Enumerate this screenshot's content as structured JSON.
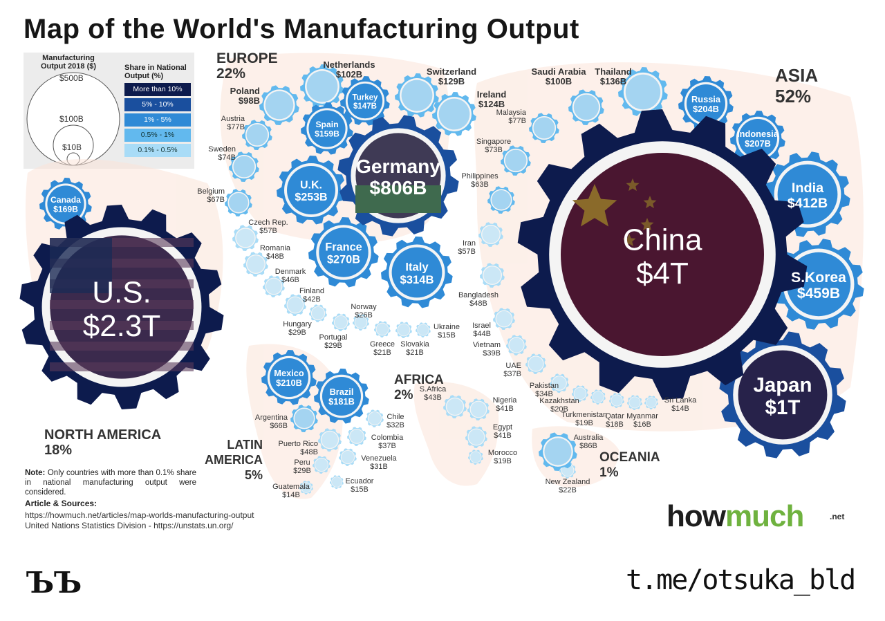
{
  "title": "Map of the World's Manufacturing Output",
  "legend": {
    "size_title_1": "Manufacturing",
    "size_title_2": "Output 2018 ($)",
    "share_title_1": "Share in National",
    "share_title_2": "Output (%)",
    "circle_labels": [
      "$500B",
      "$100B",
      "$10B"
    ],
    "share_classes": [
      {
        "label": "More than 10%",
        "color": "#0d1b4d"
      },
      {
        "label": "5% - 10%",
        "color": "#1a4f9e"
      },
      {
        "label": "1% - 5%",
        "color": "#2f8ad6"
      },
      {
        "label": "0.5% - 1%",
        "color": "#62b9ee"
      },
      {
        "label": "0.1% - 0.5%",
        "color": "#a9dcf7"
      }
    ]
  },
  "regions": [
    {
      "name": "EUROPE",
      "share": "22%"
    },
    {
      "name": "ASIA",
      "share": "52%"
    },
    {
      "name": "NORTH AMERICA",
      "share": "18%"
    },
    {
      "name": "LATIN",
      "name2": "AMERICA",
      "share": "5%"
    },
    {
      "name": "AFRICA",
      "share": "2%"
    },
    {
      "name": "OCEANIA",
      "share": "1%"
    }
  ],
  "note": {
    "prefix": "Note:",
    "text": "Only countries with more than 0.1% share in national manufacturing output were considered.",
    "sources_head": "Article & Sources:",
    "sources": [
      "https://howmuch.net/articles/map-worlds-manufacturing-output",
      "United Nations Statistics Division - https://unstats.un.org/"
    ]
  },
  "brand": {
    "how": "how",
    "much": "much",
    "net": ".net"
  },
  "watermark": {
    "mark": "ЪЪ",
    "channel": "t.me/otsuka_bld"
  },
  "chart_data": {
    "type": "bubble",
    "title": "Map of the World's Manufacturing Output",
    "value_unit": "Manufacturing Output 2018 ($)",
    "points": [
      {
        "country": "China",
        "label": "$4T",
        "value_usd_b": 4000,
        "region": "Asia",
        "share_class": "More than 10%"
      },
      {
        "country": "U.S.",
        "label": "$2.3T",
        "value_usd_b": 2300,
        "region": "North America",
        "share_class": "More than 10%"
      },
      {
        "country": "Japan",
        "label": "$1T",
        "value_usd_b": 1000,
        "region": "Asia",
        "share_class": "5% - 10%"
      },
      {
        "country": "Germany",
        "label": "$806B",
        "value_usd_b": 806,
        "region": "Europe",
        "share_class": "5% - 10%"
      },
      {
        "country": "S.Korea",
        "label": "$459B",
        "value_usd_b": 459,
        "region": "Asia",
        "share_class": "1% - 5%"
      },
      {
        "country": "India",
        "label": "$412B",
        "value_usd_b": 412,
        "region": "Asia",
        "share_class": "1% - 5%"
      },
      {
        "country": "Italy",
        "label": "$314B",
        "value_usd_b": 314,
        "region": "Europe",
        "share_class": "1% - 5%"
      },
      {
        "country": "France",
        "label": "$270B",
        "value_usd_b": 270,
        "region": "Europe",
        "share_class": "1% - 5%"
      },
      {
        "country": "U.K.",
        "label": "$253B",
        "value_usd_b": 253,
        "region": "Europe",
        "share_class": "1% - 5%"
      },
      {
        "country": "Mexico",
        "label": "$210B",
        "value_usd_b": 210,
        "region": "Latin America",
        "share_class": "1% - 5%"
      },
      {
        "country": "Indonesia",
        "label": "$207B",
        "value_usd_b": 207,
        "region": "Asia",
        "share_class": "1% - 5%"
      },
      {
        "country": "Russia",
        "label": "$204B",
        "value_usd_b": 204,
        "region": "Asia",
        "share_class": "1% - 5%"
      },
      {
        "country": "Brazil",
        "label": "$181B",
        "value_usd_b": 181,
        "region": "Latin America",
        "share_class": "1% - 5%"
      },
      {
        "country": "Canada",
        "label": "$169B",
        "value_usd_b": 169,
        "region": "North America",
        "share_class": "1% - 5%"
      },
      {
        "country": "Spain",
        "label": "$159B",
        "value_usd_b": 159,
        "region": "Europe",
        "share_class": "1% - 5%"
      },
      {
        "country": "Turkey",
        "label": "$147B",
        "value_usd_b": 147,
        "region": "Europe",
        "share_class": "1% - 5%"
      },
      {
        "country": "Thailand",
        "label": "$136B",
        "value_usd_b": 136,
        "region": "Asia",
        "share_class": "0.5% - 1%"
      },
      {
        "country": "Switzerland",
        "label": "$129B",
        "value_usd_b": 129,
        "region": "Europe",
        "share_class": "0.5% - 1%"
      },
      {
        "country": "Ireland",
        "label": "$124B",
        "value_usd_b": 124,
        "region": "Europe",
        "share_class": "0.5% - 1%"
      },
      {
        "country": "Netherlands",
        "label": "$102B",
        "value_usd_b": 102,
        "region": "Europe",
        "share_class": "0.5% - 1%"
      },
      {
        "country": "Saudi Arabia",
        "label": "$100B",
        "value_usd_b": 100,
        "region": "Asia",
        "share_class": "0.5% - 1%"
      },
      {
        "country": "Poland",
        "label": "$98B",
        "value_usd_b": 98,
        "region": "Europe",
        "share_class": "0.5% - 1%"
      },
      {
        "country": "Australia",
        "label": "$86B",
        "value_usd_b": 86,
        "region": "Oceania",
        "share_class": "0.5% - 1%"
      },
      {
        "country": "Austria",
        "label": "$77B",
        "value_usd_b": 77,
        "region": "Europe",
        "share_class": "0.5% - 1%"
      },
      {
        "country": "Malaysia",
        "label": "$77B",
        "value_usd_b": 77,
        "region": "Asia",
        "share_class": "0.5% - 1%"
      },
      {
        "country": "Sweden",
        "label": "$74B",
        "value_usd_b": 74,
        "region": "Europe",
        "share_class": "0.5% - 1%"
      },
      {
        "country": "Singapore",
        "label": "$73B",
        "value_usd_b": 73,
        "region": "Asia",
        "share_class": "0.5% - 1%"
      },
      {
        "country": "Belgium",
        "label": "$67B",
        "value_usd_b": 67,
        "region": "Europe",
        "share_class": "0.5% - 1%"
      },
      {
        "country": "Argentina",
        "label": "$66B",
        "value_usd_b": 66,
        "region": "Latin America",
        "share_class": "0.5% - 1%"
      },
      {
        "country": "Philippines",
        "label": "$63B",
        "value_usd_b": 63,
        "region": "Asia",
        "share_class": "0.5% - 1%"
      },
      {
        "country": "Czech Rep.",
        "label": "$57B",
        "value_usd_b": 57,
        "region": "Europe",
        "share_class": "0.1% - 0.5%"
      },
      {
        "country": "Iran",
        "label": "$57B",
        "value_usd_b": 57,
        "region": "Asia",
        "share_class": "0.1% - 0.5%"
      },
      {
        "country": "Romania",
        "label": "$48B",
        "value_usd_b": 48,
        "region": "Europe",
        "share_class": "0.1% - 0.5%"
      },
      {
        "country": "Bangladesh",
        "label": "$48B",
        "value_usd_b": 48,
        "region": "Asia",
        "share_class": "0.1% - 0.5%"
      },
      {
        "country": "Puerto Rico",
        "label": "$48B",
        "value_usd_b": 48,
        "region": "Latin America",
        "share_class": "0.1% - 0.5%"
      },
      {
        "country": "Denmark",
        "label": "$46B",
        "value_usd_b": 46,
        "region": "Europe",
        "share_class": "0.1% - 0.5%"
      },
      {
        "country": "Israel",
        "label": "$44B",
        "value_usd_b": 44,
        "region": "Asia",
        "share_class": "0.1% - 0.5%"
      },
      {
        "country": "S.Africa",
        "label": "$43B",
        "value_usd_b": 43,
        "region": "Africa",
        "share_class": "0.1% - 0.5%"
      },
      {
        "country": "Finland",
        "label": "$42B",
        "value_usd_b": 42,
        "region": "Europe",
        "share_class": "0.1% - 0.5%"
      },
      {
        "country": "Nigeria",
        "label": "$41B",
        "value_usd_b": 41,
        "region": "Africa",
        "share_class": "0.1% - 0.5%"
      },
      {
        "country": "Egypt",
        "label": "$41B",
        "value_usd_b": 41,
        "region": "Africa",
        "share_class": "0.1% - 0.5%"
      },
      {
        "country": "Vietnam",
        "label": "$39B",
        "value_usd_b": 39,
        "region": "Asia",
        "share_class": "0.1% - 0.5%"
      },
      {
        "country": "UAE",
        "label": "$37B",
        "value_usd_b": 37,
        "region": "Asia",
        "share_class": "0.1% - 0.5%"
      },
      {
        "country": "Colombia",
        "label": "$37B",
        "value_usd_b": 37,
        "region": "Latin America",
        "share_class": "0.1% - 0.5%"
      },
      {
        "country": "Pakistan",
        "label": "$34B",
        "value_usd_b": 34,
        "region": "Asia",
        "share_class": "0.1% - 0.5%"
      },
      {
        "country": "Chile",
        "label": "$32B",
        "value_usd_b": 32,
        "region": "Latin America",
        "share_class": "0.1% - 0.5%"
      },
      {
        "country": "Venezuela",
        "label": "$31B",
        "value_usd_b": 31,
        "region": "Latin America",
        "share_class": "0.1% - 0.5%"
      },
      {
        "country": "Hungary",
        "label": "$29B",
        "value_usd_b": 29,
        "region": "Europe",
        "share_class": "0.1% - 0.5%"
      },
      {
        "country": "Portugal",
        "label": "$29B",
        "value_usd_b": 29,
        "region": "Europe",
        "share_class": "0.1% - 0.5%"
      },
      {
        "country": "Peru",
        "label": "$29B",
        "value_usd_b": 29,
        "region": "Latin America",
        "share_class": "0.1% - 0.5%"
      },
      {
        "country": "Norway",
        "label": "$26B",
        "value_usd_b": 26,
        "region": "Europe",
        "share_class": "0.1% - 0.5%"
      },
      {
        "country": "New Zealand",
        "label": "$22B",
        "value_usd_b": 22,
        "region": "Oceania",
        "share_class": "0.1% - 0.5%"
      },
      {
        "country": "Greece",
        "label": "$21B",
        "value_usd_b": 21,
        "region": "Europe",
        "share_class": "0.1% - 0.5%"
      },
      {
        "country": "Slovakia",
        "label": "$21B",
        "value_usd_b": 21,
        "region": "Europe",
        "share_class": "0.1% - 0.5%"
      },
      {
        "country": "Kazakhstan",
        "label": "$20B",
        "value_usd_b": 20,
        "region": "Asia",
        "share_class": "0.1% - 0.5%"
      },
      {
        "country": "Turkmenistan",
        "label": "$19B",
        "value_usd_b": 19,
        "region": "Asia",
        "share_class": "0.1% - 0.5%"
      },
      {
        "country": "Morocco",
        "label": "$19B",
        "value_usd_b": 19,
        "region": "Africa",
        "share_class": "0.1% - 0.5%"
      },
      {
        "country": "Qatar",
        "label": "$18B",
        "value_usd_b": 18,
        "region": "Asia",
        "share_class": "0.1% - 0.5%"
      },
      {
        "country": "Myanmar",
        "label": "$16B",
        "value_usd_b": 16,
        "region": "Asia",
        "share_class": "0.1% - 0.5%"
      },
      {
        "country": "Ukraine",
        "label": "$15B",
        "value_usd_b": 15,
        "region": "Europe",
        "share_class": "0.1% - 0.5%"
      },
      {
        "country": "Ecuador",
        "label": "$15B",
        "value_usd_b": 15,
        "region": "Latin America",
        "share_class": "0.1% - 0.5%"
      },
      {
        "country": "Sri Lanka",
        "label": "$14B",
        "value_usd_b": 14,
        "region": "Asia",
        "share_class": "0.1% - 0.5%"
      },
      {
        "country": "Guatemala",
        "label": "$14B",
        "value_usd_b": 14,
        "region": "Latin America",
        "share_class": "0.1% - 0.5%"
      }
    ]
  }
}
